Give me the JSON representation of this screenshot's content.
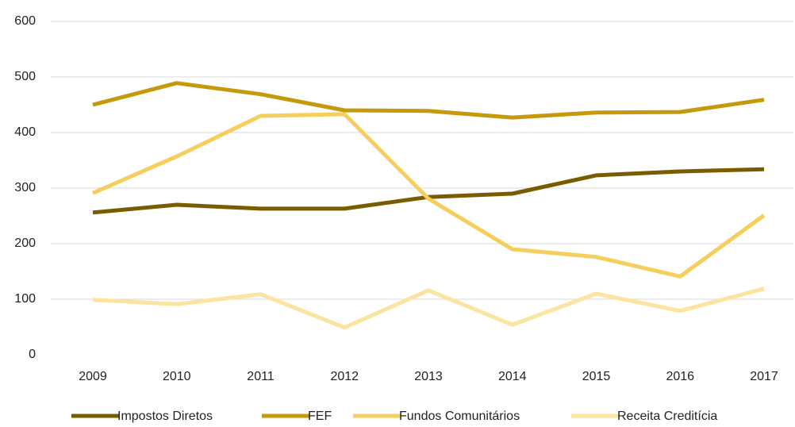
{
  "chart_data": {
    "type": "line",
    "categories": [
      "2009",
      "2010",
      "2011",
      "2012",
      "2013",
      "2014",
      "2015",
      "2016",
      "2017"
    ],
    "series": [
      {
        "name": "Impostos Diretos",
        "color": "#7a5c00",
        "values": [
          256,
          270,
          263,
          263,
          284,
          290,
          323,
          330,
          334
        ]
      },
      {
        "name": "FEF",
        "color": "#c49a0a",
        "values": [
          450,
          489,
          469,
          440,
          439,
          427,
          436,
          437,
          459
        ]
      },
      {
        "name": "Fundos Comunitários",
        "color": "#f5ce5c",
        "values": [
          291,
          357,
          430,
          433,
          281,
          190,
          176,
          141,
          251
        ]
      },
      {
        "name": "Receita Creditícia",
        "color": "#fbe3a0",
        "values": [
          99,
          91,
          109,
          49,
          116,
          54,
          110,
          79,
          119
        ]
      }
    ],
    "ylim": [
      0,
      600
    ],
    "yticks": [
      0,
      100,
      200,
      300,
      400,
      500,
      600
    ],
    "grid": true,
    "legend": "bottom"
  }
}
